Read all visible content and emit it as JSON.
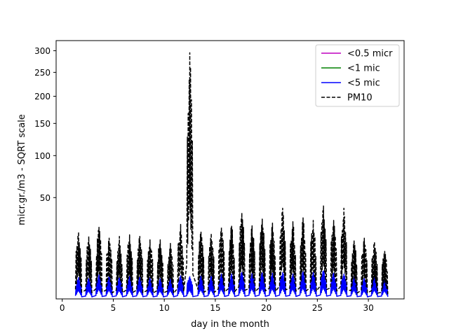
{
  "chart_data": {
    "type": "line",
    "title": "",
    "xlabel": "day in the month",
    "ylabel": "micr.gr./m3 - SQRT scale",
    "y_scale": "sqrt",
    "xlim": [
      -0.6,
      33.5
    ],
    "ylim": [
      0,
      325
    ],
    "x_ticks": [
      0,
      5,
      10,
      15,
      20,
      25,
      30
    ],
    "y_ticks": [
      50,
      100,
      150,
      200,
      250,
      300
    ],
    "legend_position": "top-right",
    "grid": false,
    "series": [
      {
        "name": "<0.5 micr",
        "color": "#bf00bf",
        "style": "solid"
      },
      {
        "name": "<1 mic",
        "color": "#008000",
        "style": "solid"
      },
      {
        "name": "<5 mic",
        "color": "#0000ff",
        "style": "solid",
        "daily_peaks": [
          {
            "day": 1.6,
            "value": 2.2
          },
          {
            "day": 2.6,
            "value": 2.0
          },
          {
            "day": 3.6,
            "value": 2.8
          },
          {
            "day": 4.6,
            "value": 2.4
          },
          {
            "day": 5.6,
            "value": 2.2
          },
          {
            "day": 6.6,
            "value": 2.5
          },
          {
            "day": 7.6,
            "value": 2.3
          },
          {
            "day": 8.6,
            "value": 2.2
          },
          {
            "day": 9.6,
            "value": 2.0
          },
          {
            "day": 10.6,
            "value": 2.2
          },
          {
            "day": 11.6,
            "value": 2.6
          },
          {
            "day": 12.5,
            "value": 2.4
          },
          {
            "day": 13.6,
            "value": 2.6
          },
          {
            "day": 14.6,
            "value": 2.5
          },
          {
            "day": 15.6,
            "value": 3.0
          },
          {
            "day": 16.6,
            "value": 3.0
          },
          {
            "day": 17.6,
            "value": 3.4
          },
          {
            "day": 18.6,
            "value": 3.2
          },
          {
            "day": 19.6,
            "value": 3.3
          },
          {
            "day": 20.6,
            "value": 3.2
          },
          {
            "day": 21.6,
            "value": 3.4
          },
          {
            "day": 22.6,
            "value": 3.0
          },
          {
            "day": 23.6,
            "value": 3.6
          },
          {
            "day": 24.6,
            "value": 3.4
          },
          {
            "day": 25.6,
            "value": 3.8
          },
          {
            "day": 26.6,
            "value": 3.2
          },
          {
            "day": 27.6,
            "value": 3.0
          },
          {
            "day": 28.6,
            "value": 2.4
          },
          {
            "day": 29.6,
            "value": 2.0
          },
          {
            "day": 30.6,
            "value": 2.4
          },
          {
            "day": 31.6,
            "value": 2.0
          }
        ]
      },
      {
        "name": "PM10",
        "color": "#000000",
        "style": "dashed",
        "daily_peaks": [
          {
            "day": 1.6,
            "value": 22
          },
          {
            "day": 2.6,
            "value": 19
          },
          {
            "day": 3.6,
            "value": 25
          },
          {
            "day": 4.6,
            "value": 18
          },
          {
            "day": 5.6,
            "value": 19
          },
          {
            "day": 6.6,
            "value": 20
          },
          {
            "day": 7.6,
            "value": 19
          },
          {
            "day": 8.6,
            "value": 17
          },
          {
            "day": 9.6,
            "value": 17
          },
          {
            "day": 10.6,
            "value": 15
          },
          {
            "day": 11.6,
            "value": 27
          },
          {
            "day": 12.5,
            "value": 295
          },
          {
            "day": 13.6,
            "value": 22
          },
          {
            "day": 14.6,
            "value": 21
          },
          {
            "day": 15.6,
            "value": 25
          },
          {
            "day": 16.6,
            "value": 26
          },
          {
            "day": 17.6,
            "value": 36
          },
          {
            "day": 18.6,
            "value": 26
          },
          {
            "day": 19.6,
            "value": 31
          },
          {
            "day": 20.6,
            "value": 28
          },
          {
            "day": 21.6,
            "value": 40
          },
          {
            "day": 22.6,
            "value": 29
          },
          {
            "day": 23.6,
            "value": 32
          },
          {
            "day": 24.6,
            "value": 30
          },
          {
            "day": 25.6,
            "value": 42
          },
          {
            "day": 26.6,
            "value": 30
          },
          {
            "day": 27.6,
            "value": 40
          },
          {
            "day": 28.6,
            "value": 17
          },
          {
            "day": 29.6,
            "value": 18
          },
          {
            "day": 30.6,
            "value": 16
          },
          {
            "day": 31.6,
            "value": 11
          }
        ]
      }
    ]
  }
}
